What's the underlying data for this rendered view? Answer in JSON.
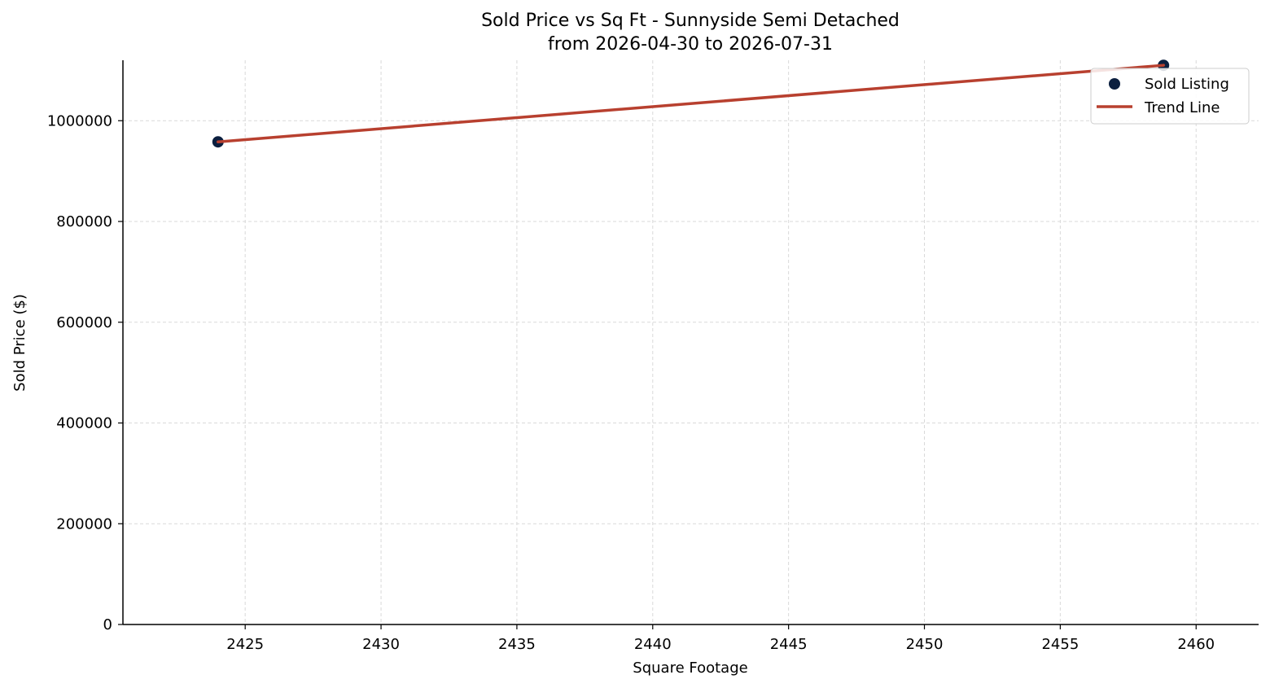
{
  "chart_data": {
    "type": "scatter",
    "title": "Sold Price vs Sq Ft - Sunnyside Semi Detached",
    "subtitle": "from 2026-04-30 to 2026-07-31",
    "xlabel": "Square Footage",
    "ylabel": "Sold Price ($)",
    "xlim": [
      2420.5,
      2462.3
    ],
    "ylim": [
      0,
      1120000
    ],
    "x_ticks": [
      2425,
      2430,
      2435,
      2440,
      2445,
      2450,
      2455,
      2460
    ],
    "y_ticks": [
      0,
      200000,
      400000,
      600000,
      800000,
      1000000
    ],
    "grid": true,
    "legend_position": "top-right",
    "series": [
      {
        "name": "Sold Listing",
        "kind": "scatter",
        "color": "#0b1f3f",
        "points": [
          {
            "x": 2424,
            "y": 958000
          },
          {
            "x": 2458.8,
            "y": 1110000
          }
        ]
      },
      {
        "name": "Trend Line",
        "kind": "line",
        "color": "#b8402f",
        "points": [
          {
            "x": 2424,
            "y": 958000
          },
          {
            "x": 2458.8,
            "y": 1110000
          }
        ]
      }
    ]
  }
}
